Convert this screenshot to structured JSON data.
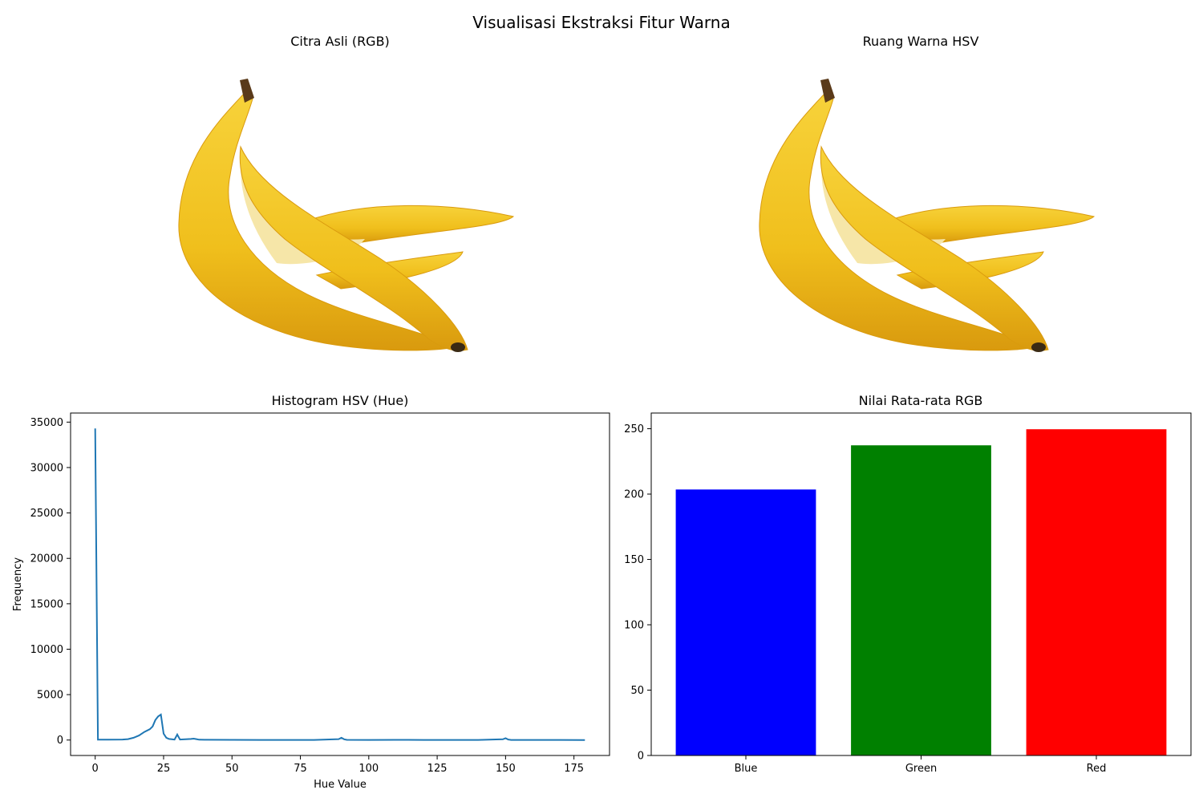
{
  "suptitle": "Visualisasi Ekstraksi Fitur Warna",
  "panels": {
    "rgb_image": {
      "title": "Citra Asli (RGB)"
    },
    "hsv_image": {
      "title": "Ruang Warna HSV"
    },
    "histogram": {
      "title": "Histogram HSV (Hue)"
    },
    "means": {
      "title": "Nilai Rata-rata RGB"
    }
  },
  "colors": {
    "line": "#1f77b4",
    "banana_light": "#f7d23a",
    "banana_mid": "#f0bf1c",
    "banana_dark": "#d99a0e",
    "stem": "#5a3a1a"
  },
  "chart_data": [
    {
      "type": "line",
      "title": "Histogram HSV (Hue)",
      "xlabel": "Hue Value",
      "ylabel": "Frequency",
      "xlim": [
        -9,
        188
      ],
      "ylim": [
        -1700,
        36000
      ],
      "xticks": [
        0,
        25,
        50,
        75,
        100,
        125,
        150,
        175
      ],
      "yticks": [
        0,
        5000,
        10000,
        15000,
        20000,
        25000,
        30000,
        35000
      ],
      "x": [
        0,
        1,
        5,
        10,
        12,
        14,
        16,
        18,
        20,
        21,
        22,
        23,
        24,
        25,
        26,
        27,
        28,
        29,
        30,
        31,
        33,
        35,
        36,
        37,
        38,
        40,
        50,
        60,
        70,
        80,
        89,
        90,
        91,
        92,
        100,
        110,
        120,
        130,
        140,
        149,
        150,
        151,
        152,
        160,
        170,
        179
      ],
      "y": [
        34300,
        50,
        50,
        60,
        100,
        250,
        500,
        900,
        1200,
        1500,
        2200,
        2600,
        2800,
        700,
        250,
        120,
        80,
        50,
        600,
        60,
        80,
        120,
        150,
        100,
        40,
        30,
        20,
        15,
        15,
        10,
        100,
        250,
        80,
        20,
        15,
        20,
        15,
        10,
        10,
        80,
        200,
        60,
        15,
        10,
        10,
        5
      ]
    },
    {
      "type": "bar",
      "title": "Nilai Rata-rata RGB",
      "categories": [
        "Blue",
        "Green",
        "Red"
      ],
      "values": [
        203.5,
        237.3,
        249.6
      ],
      "bar_colors": [
        "#0000ff",
        "#008000",
        "#ff0000"
      ],
      "ylim": [
        0,
        262
      ],
      "yticks": [
        0,
        50,
        100,
        150,
        200,
        250
      ]
    }
  ]
}
